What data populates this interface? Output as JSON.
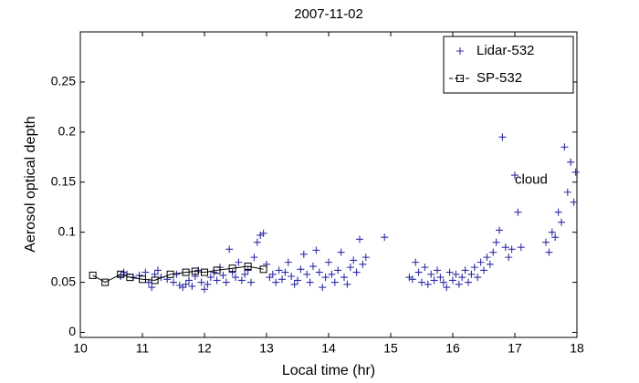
{
  "chart_data": {
    "type": "scatter",
    "title": "2007-11-02",
    "x_label": "Local time (hr)",
    "y_label": "Aerosol optical depth",
    "xlim": [
      10,
      18
    ],
    "ylim": [
      -0.005,
      0.3
    ],
    "xticks": [
      10,
      11,
      12,
      13,
      14,
      15,
      16,
      17,
      18
    ],
    "yticks": [
      0,
      0.05,
      0.1,
      0.15,
      0.2,
      0.25
    ],
    "grid": false,
    "legend": "northeast",
    "annotations": [
      {
        "text": "cloud",
        "x": 17.0,
        "y": 0.152
      }
    ],
    "series": [
      {
        "name": "Lidar-532",
        "color": "#2e2ea6",
        "marker": "plus",
        "line": false,
        "x": [
          10.65,
          10.7,
          10.75,
          10.85,
          10.95,
          11.05,
          11.1,
          11.15,
          11.2,
          11.25,
          11.3,
          11.4,
          11.5,
          11.55,
          11.6,
          11.65,
          11.7,
          11.75,
          11.8,
          11.85,
          11.9,
          11.95,
          12.0,
          12.05,
          12.1,
          12.15,
          12.2,
          12.25,
          12.3,
          12.35,
          12.4,
          12.45,
          12.5,
          12.55,
          12.6,
          12.65,
          12.7,
          12.75,
          12.8,
          12.85,
          12.9,
          12.95,
          13.0,
          13.05,
          13.1,
          13.15,
          13.2,
          13.25,
          13.3,
          13.35,
          13.4,
          13.45,
          13.5,
          13.55,
          13.6,
          13.65,
          13.7,
          13.75,
          13.8,
          13.85,
          13.9,
          13.95,
          14.0,
          14.05,
          14.1,
          14.15,
          14.2,
          14.25,
          14.3,
          14.35,
          14.4,
          14.45,
          14.5,
          14.55,
          14.6,
          14.9,
          15.3,
          15.35,
          15.4,
          15.45,
          15.5,
          15.55,
          15.6,
          15.65,
          15.7,
          15.75,
          15.8,
          15.85,
          15.9,
          15.95,
          16.0,
          16.05,
          16.1,
          16.15,
          16.2,
          16.25,
          16.3,
          16.35,
          16.4,
          16.45,
          16.5,
          16.55,
          16.6,
          16.65,
          16.7,
          16.75,
          16.8,
          16.85,
          16.9,
          16.95,
          17.0,
          17.05,
          17.1,
          17.5,
          17.55,
          17.6,
          17.65,
          17.7,
          17.75,
          17.8,
          17.85,
          17.9,
          17.95,
          17.98
        ],
        "values": [
          0.056,
          0.06,
          0.058,
          0.055,
          0.057,
          0.06,
          0.05,
          0.045,
          0.058,
          0.062,
          0.055,
          0.053,
          0.05,
          0.058,
          0.047,
          0.045,
          0.048,
          0.052,
          0.046,
          0.056,
          0.062,
          0.05,
          0.043,
          0.048,
          0.055,
          0.06,
          0.052,
          0.065,
          0.057,
          0.05,
          0.083,
          0.06,
          0.055,
          0.07,
          0.052,
          0.058,
          0.062,
          0.05,
          0.075,
          0.09,
          0.097,
          0.099,
          0.068,
          0.055,
          0.058,
          0.05,
          0.062,
          0.053,
          0.06,
          0.07,
          0.056,
          0.048,
          0.052,
          0.063,
          0.078,
          0.058,
          0.05,
          0.066,
          0.082,
          0.06,
          0.045,
          0.055,
          0.07,
          0.058,
          0.05,
          0.062,
          0.08,
          0.055,
          0.048,
          0.065,
          0.072,
          0.06,
          0.093,
          0.068,
          0.075,
          0.095,
          0.055,
          0.053,
          0.07,
          0.06,
          0.05,
          0.065,
          0.048,
          0.058,
          0.052,
          0.062,
          0.055,
          0.05,
          0.045,
          0.06,
          0.052,
          0.058,
          0.048,
          0.055,
          0.062,
          0.05,
          0.058,
          0.065,
          0.055,
          0.07,
          0.062,
          0.075,
          0.068,
          0.08,
          0.09,
          0.102,
          0.195,
          0.085,
          0.075,
          0.083,
          0.157,
          0.12,
          0.085,
          0.09,
          0.08,
          0.1,
          0.095,
          0.12,
          0.11,
          0.185,
          0.14,
          0.17,
          0.13,
          0.16
        ]
      },
      {
        "name": "SP-532",
        "color": "#000000",
        "marker": "square",
        "line": true,
        "x": [
          10.2,
          10.4,
          10.65,
          10.8,
          11.0,
          11.2,
          11.45,
          11.7,
          11.85,
          12.0,
          12.2,
          12.45,
          12.7,
          12.95
        ],
        "values": [
          0.057,
          0.05,
          0.058,
          0.055,
          0.053,
          0.052,
          0.058,
          0.06,
          0.061,
          0.06,
          0.062,
          0.064,
          0.066,
          0.063
        ]
      }
    ]
  }
}
